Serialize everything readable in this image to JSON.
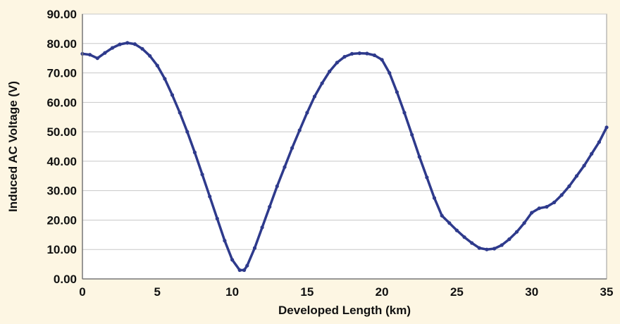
{
  "chart_data": {
    "type": "line",
    "title": "",
    "xlabel": "Developed Length (km)",
    "ylabel": "Induced AC Voltage (V)",
    "xlim": [
      0,
      35
    ],
    "ylim": [
      0,
      90
    ],
    "x_ticks": [
      "0",
      "5",
      "10",
      "15",
      "20",
      "25",
      "30",
      "35"
    ],
    "y_ticks": [
      "0.00",
      "10.00",
      "20.00",
      "30.00",
      "40.00",
      "50.00",
      "60.00",
      "70.00",
      "80.00",
      "90.00"
    ],
    "grid": "horizontal",
    "legend": "none",
    "series": [
      {
        "color": "#2e3a8c",
        "x": [
          0,
          0.5,
          1,
          1.5,
          2,
          2.5,
          3,
          3.5,
          4,
          4.5,
          5,
          5.5,
          6,
          6.5,
          7,
          7.5,
          8,
          8.5,
          9,
          9.5,
          10,
          10.5,
          10.8,
          11,
          11.5,
          12,
          12.5,
          13,
          13.5,
          14,
          14.5,
          15,
          15.5,
          16,
          16.5,
          17,
          17.5,
          18,
          18.5,
          19,
          19.5,
          20,
          20.5,
          21,
          21.5,
          22,
          22.5,
          23,
          23.5,
          24,
          24.5,
          25,
          25.5,
          26,
          26.5,
          27,
          27.5,
          28,
          28.5,
          29,
          29.5,
          30,
          30.5,
          31,
          31.5,
          32,
          32.5,
          33,
          33.5,
          34,
          34.5,
          35
        ],
        "values": [
          76.5,
          76.2,
          75.0,
          76.8,
          78.5,
          79.7,
          80.2,
          79.8,
          78.2,
          75.8,
          72.5,
          68.0,
          62.5,
          56.5,
          50.0,
          43.0,
          35.5,
          28.0,
          20.5,
          13.0,
          6.5,
          3.0,
          3.0,
          4.5,
          10.5,
          17.5,
          24.5,
          31.5,
          38.0,
          44.5,
          50.5,
          56.5,
          62.0,
          66.5,
          70.5,
          73.5,
          75.5,
          76.5,
          76.7,
          76.6,
          76.0,
          74.5,
          70.0,
          63.5,
          56.5,
          49.0,
          41.5,
          34.5,
          27.5,
          21.5,
          19.0,
          16.5,
          14.2,
          12.2,
          10.5,
          10.0,
          10.3,
          11.5,
          13.5,
          16.0,
          19.0,
          22.5,
          24.0,
          24.5,
          26.0,
          28.5,
          31.5,
          35.0,
          38.5,
          42.5,
          46.5,
          51.5
        ]
      }
    ]
  }
}
